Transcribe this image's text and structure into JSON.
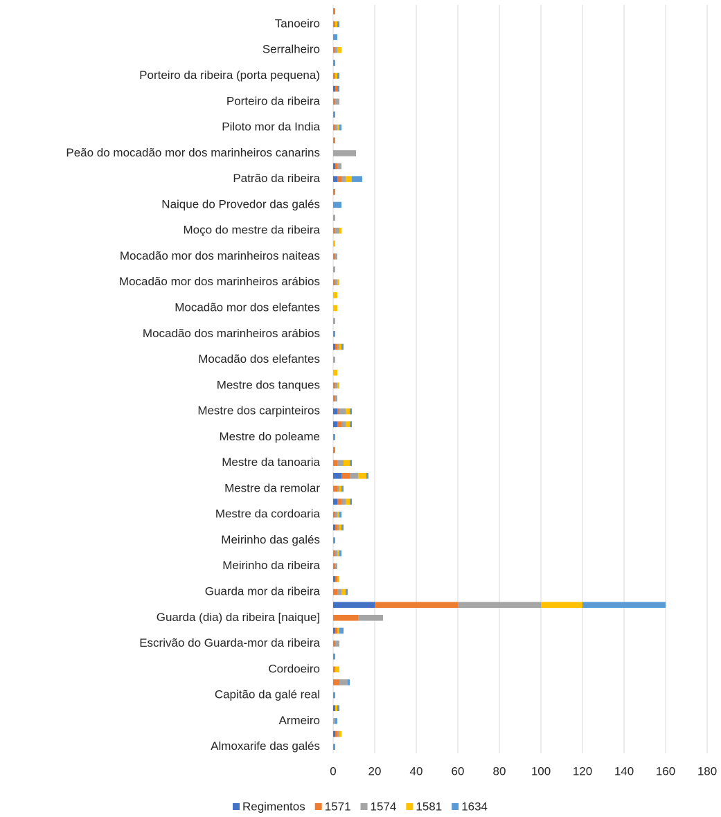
{
  "chart_data": {
    "type": "stacked-barh",
    "categories": [
      "Almoxarife das galés",
      null,
      "Armeiro",
      null,
      "Capitão da galé real",
      null,
      "Cordoeiro",
      null,
      "Escrivão do Guarda-mor da ribeira",
      null,
      "Guarda (dia) da ribeira [naique]",
      null,
      "Guarda mor da ribeira",
      null,
      "Meirinho da ribeira",
      null,
      "Meirinho das galés",
      null,
      "Mestre da cordoaria",
      null,
      "Mestre da remolar",
      null,
      "Mestre da tanoaria",
      null,
      "Mestre do poleame",
      null,
      "Mestre dos carpinteiros",
      null,
      "Mestre dos tanques",
      null,
      "Mocadão dos elefantes",
      null,
      "Mocadão dos marinheiros arábios",
      null,
      "Mocadão mor dos elefantes",
      null,
      "Mocadão mor dos marinheiros arábios",
      null,
      "Mocadão mor dos marinheiros naiteas",
      null,
      "Moço do mestre da ribeira",
      null,
      "Naique do Provedor das galés",
      null,
      "Patrão da ribeira",
      null,
      "Peão do mocadão mor dos marinheiros canarins",
      null,
      "Piloto mor da India",
      null,
      "Porteiro da ribeira",
      null,
      "Porteiro da ribeira (porta pequena)",
      null,
      "Serralheiro",
      null,
      "Tanoeiro",
      null
    ],
    "series": [
      {
        "name": "Regimentos",
        "color": "#4472c4",
        "values": [
          0,
          1,
          0,
          1,
          0,
          0,
          0,
          0,
          0,
          1,
          0,
          20,
          0,
          1,
          0,
          0,
          0,
          1,
          0,
          2,
          0,
          4,
          0,
          0,
          0,
          2,
          2,
          0,
          0,
          0,
          0,
          1,
          0,
          0,
          0,
          0,
          0,
          0,
          0,
          0,
          0,
          0,
          0,
          0,
          2,
          1,
          0,
          0,
          0,
          0,
          0,
          1,
          0,
          0,
          0,
          0,
          0,
          0
        ]
      },
      {
        "name": "1571",
        "color": "#ed7d31",
        "values": [
          0,
          1,
          0,
          0,
          0,
          3,
          1,
          0,
          1,
          1,
          12,
          40,
          2,
          1,
          1,
          1,
          0,
          1,
          1,
          2,
          2,
          4,
          2,
          1,
          0,
          2,
          1,
          1,
          1,
          0,
          0,
          1,
          0,
          0,
          0,
          0,
          1,
          0,
          1,
          0,
          1,
          0,
          0,
          1,
          2,
          1,
          0,
          1,
          1,
          0,
          1,
          1,
          1,
          0,
          1,
          0,
          1,
          1
        ]
      },
      {
        "name": "1574",
        "color": "#a5a5a5",
        "values": [
          0,
          1,
          1,
          0,
          0,
          4,
          0,
          0,
          2,
          0,
          12,
          40,
          2,
          0,
          1,
          1,
          0,
          1,
          1,
          2,
          1,
          4,
          3,
          0,
          0,
          2,
          3,
          1,
          1,
          0,
          1,
          1,
          0,
          1,
          0,
          0,
          1,
          1,
          1,
          0,
          2,
          1,
          0,
          0,
          2,
          2,
          11,
          0,
          1,
          0,
          2,
          0,
          0,
          0,
          1,
          0,
          0,
          0
        ]
      },
      {
        "name": "1581",
        "color": "#ffc000",
        "values": [
          0,
          1,
          0,
          1,
          0,
          0,
          2,
          0,
          0,
          1,
          0,
          20,
          2,
          1,
          0,
          1,
          0,
          1,
          1,
          2,
          1,
          4,
          3,
          0,
          0,
          2,
          2,
          0,
          1,
          2,
          0,
          1,
          0,
          0,
          2,
          2,
          1,
          0,
          0,
          1,
          1,
          0,
          0,
          0,
          3,
          0,
          0,
          0,
          1,
          0,
          0,
          0,
          1,
          0,
          2,
          0,
          1,
          0
        ]
      },
      {
        "name": "1634",
        "color": "#5b9bd5",
        "values": [
          1,
          0,
          1,
          1,
          1,
          1,
          0,
          1,
          0,
          2,
          0,
          40,
          1,
          0,
          0,
          1,
          1,
          1,
          1,
          1,
          1,
          1,
          1,
          0,
          1,
          1,
          1,
          0,
          0,
          0,
          0,
          1,
          1,
          0,
          0,
          0,
          0,
          0,
          0,
          0,
          0,
          0,
          4,
          0,
          5,
          0,
          0,
          0,
          1,
          1,
          0,
          1,
          1,
          1,
          0,
          2,
          1,
          0
        ]
      }
    ],
    "xlim": [
      0,
      180
    ],
    "xticks": [
      0,
      20,
      40,
      60,
      80,
      100,
      120,
      140,
      160,
      180
    ],
    "grid": true,
    "legend": "bottom"
  }
}
